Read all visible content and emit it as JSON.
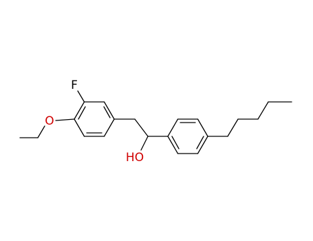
{
  "labels": [
    "F",
    "O",
    "HO"
  ]
}
